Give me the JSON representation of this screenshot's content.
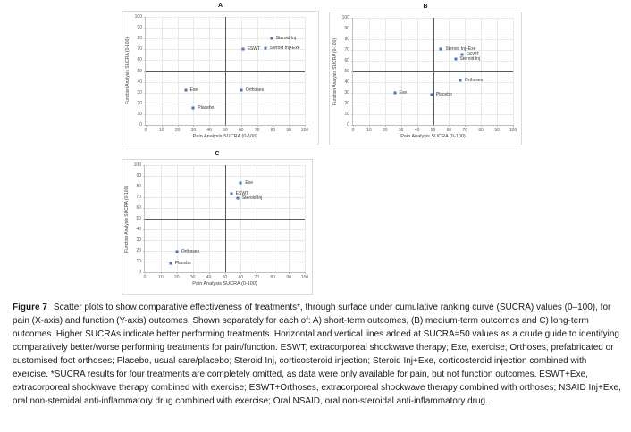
{
  "figure": {
    "caption_label": "Figure 7",
    "caption_text": "Scatter plots to show comparative effectiveness of treatments*, through surface under cumulative ranking curve (SUCRA) values (0–100), for pain (X-axis) and function (Y-axis) outcomes. Shown separately for each of: A) short-term outcomes, (B) medium-term outcomes and C) long-term outcomes. Higher SUCRAs indicate better performing treatments. Horizontal and vertical lines added at SUCRA=50 values as a crude guide to identifying comparatively better/worse performing treatments for pain/function. ESWT, extracorporeal shockwave therapy; Exe, exercise; Orthoses, prefabricated or customised foot orthoses; Placebo, usual care/placebo; Steroid Inj, corticosteroid injection; Steroid Inj+Exe, corticosteroid injection combined with exercise. *SUCRA results for four treatments are completely omitted, as data were only available for pain, but not function outcomes. ESWT+Exe, extracorporeal shockwave therapy combined with exercise; ESWT+Orthoses, extracorporeal shockwave therapy combined with orthoses; NSAID Inj+Exe, oral non-steroidal anti-inflammatory drug combined with exercise; Oral NSAID, oral non-steroidal anti-inflammatory drug."
  },
  "colors": {
    "marker": "#4472C4",
    "reference_line": "#595959",
    "gridline": "#e9e9e9",
    "axis_line": "#bfbfbf",
    "text": "#1a1a1a"
  },
  "chart_data": [
    {
      "type": "scatter",
      "title": "A",
      "xlabel": "Pain Analysis SUCRA (0-100)",
      "ylabel": "Function Analysis SUCRA (0-100)",
      "xlim": [
        0,
        100
      ],
      "ylim": [
        0,
        100
      ],
      "xticks": [
        0,
        10,
        20,
        30,
        40,
        50,
        60,
        70,
        80,
        90,
        100
      ],
      "yticks": [
        0,
        10,
        20,
        30,
        40,
        50,
        60,
        70,
        80,
        90,
        100
      ],
      "grid": true,
      "legend": "none",
      "reference_lines": {
        "x": 50,
        "y": 50
      },
      "points": [
        {
          "label": "Steroid Inj",
          "x": 79,
          "y": 80
        },
        {
          "label": "Steroid Inj+Exe",
          "x": 75,
          "y": 71
        },
        {
          "label": "ESWT",
          "x": 61,
          "y": 70
        },
        {
          "label": "Orthoses",
          "x": 60,
          "y": 32
        },
        {
          "label": "Exe",
          "x": 25,
          "y": 32
        },
        {
          "label": "Placebo",
          "x": 30,
          "y": 16
        }
      ]
    },
    {
      "type": "scatter",
      "title": "B",
      "xlabel": "Pain Analysis SUCRA (0-100)",
      "ylabel": "Function Analysis SUCRA (0-100)",
      "xlim": [
        0,
        100
      ],
      "ylim": [
        0,
        100
      ],
      "xticks": [
        0,
        10,
        20,
        30,
        40,
        50,
        60,
        70,
        80,
        90,
        100
      ],
      "yticks": [
        0,
        10,
        20,
        30,
        40,
        50,
        60,
        70,
        80,
        90,
        100
      ],
      "grid": true,
      "legend": "none",
      "reference_lines": {
        "x": 50,
        "y": 50
      },
      "points": [
        {
          "label": "Steroid Inj+Exe",
          "x": 55,
          "y": 71
        },
        {
          "label": "ESWT",
          "x": 68,
          "y": 66
        },
        {
          "label": "Steroid Inj",
          "x": 64,
          "y": 62
        },
        {
          "label": "Orthoses",
          "x": 67,
          "y": 42
        },
        {
          "label": "Exe",
          "x": 26,
          "y": 30
        },
        {
          "label": "Placebo",
          "x": 49,
          "y": 28
        }
      ]
    },
    {
      "type": "scatter",
      "title": "C",
      "xlabel": "Pain Analysis SUCRA (0-100)",
      "ylabel": "Function Analysis SUCRA (0-100)",
      "xlim": [
        0,
        100
      ],
      "ylim": [
        0,
        100
      ],
      "xticks": [
        0,
        10,
        20,
        30,
        40,
        50,
        60,
        70,
        80,
        90,
        100
      ],
      "yticks": [
        0,
        10,
        20,
        30,
        40,
        50,
        60,
        70,
        80,
        90,
        100
      ],
      "grid": true,
      "legend": "none",
      "reference_lines": {
        "x": 50,
        "y": 50
      },
      "points": [
        {
          "label": "Exe",
          "x": 60,
          "y": 83
        },
        {
          "label": "ESWT",
          "x": 54,
          "y": 73
        },
        {
          "label": "Steroid Inj",
          "x": 58,
          "y": 69
        },
        {
          "label": "Orthoses",
          "x": 20,
          "y": 19
        },
        {
          "label": "Placebo",
          "x": 16,
          "y": 8
        }
      ]
    }
  ]
}
